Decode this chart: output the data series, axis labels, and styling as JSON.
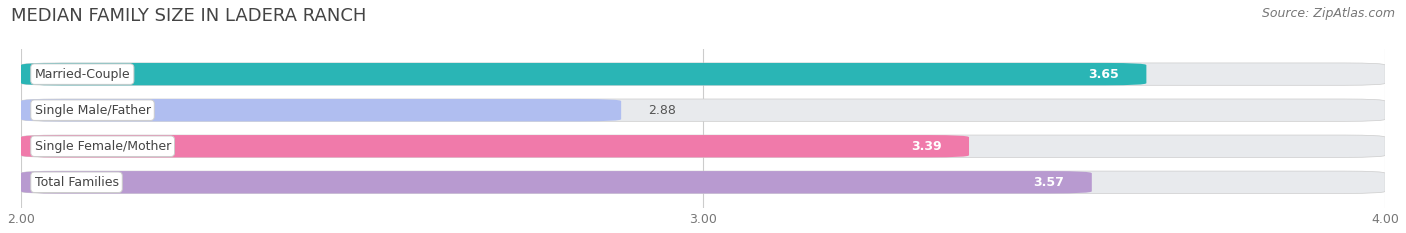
{
  "title": "MEDIAN FAMILY SIZE IN LADERA RANCH",
  "source": "Source: ZipAtlas.com",
  "categories": [
    "Married-Couple",
    "Single Male/Father",
    "Single Female/Mother",
    "Total Families"
  ],
  "values": [
    3.65,
    2.88,
    3.39,
    3.57
  ],
  "bar_colors": [
    "#2ab5b5",
    "#b0bef0",
    "#f07aaa",
    "#b89ad0"
  ],
  "label_text_color": "#444444",
  "value_colors_inside": [
    "#ffffff",
    "#555555",
    "#ffffff",
    "#ffffff"
  ],
  "xlim": [
    2.0,
    4.0
  ],
  "xticks": [
    2.0,
    3.0,
    4.0
  ],
  "xtick_labels": [
    "2.00",
    "3.00",
    "4.00"
  ],
  "background_color": "#ffffff",
  "bar_background_color": "#e8eaed",
  "title_fontsize": 13,
  "source_fontsize": 9,
  "label_fontsize": 9,
  "value_fontsize": 9,
  "tick_fontsize": 9,
  "bar_height": 0.62,
  "bar_gap": 0.38
}
